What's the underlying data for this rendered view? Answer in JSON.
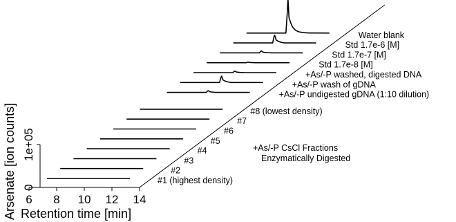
{
  "chart_data": {
    "type": "line",
    "xlabel": "Retention time [min]",
    "ylabel": "Arsenate [ion counts]",
    "x_ticks": [
      "6",
      "8",
      "10",
      "12",
      "14"
    ],
    "y_ticks": [
      "0",
      "1e+05"
    ],
    "xlim": [
      6,
      14
    ],
    "ylim": [
      0,
      100000
    ],
    "group_label_lines": [
      "+As/-P CsCl Fractions",
      "Enzymatically Digested"
    ],
    "series": [
      {
        "name": "#1 (highest density)",
        "peak": null
      },
      {
        "name": "#2",
        "peak": null
      },
      {
        "name": "#3",
        "peak": null
      },
      {
        "name": "#4",
        "peak": null
      },
      {
        "name": "#5",
        "peak": null
      },
      {
        "name": "#6",
        "peak": null
      },
      {
        "name": "#7",
        "peak": null
      },
      {
        "name": "#8 (lowest density)",
        "peak": null
      },
      {
        "name": "+As/-P undigested gDNA (1:10 dilution)",
        "peak": {
          "rt": 10.0,
          "height": 4000
        }
      },
      {
        "name": "+As/-P wash of gDNA",
        "peak": {
          "rt": 10.0,
          "height": 15000
        }
      },
      {
        "name": "+As/-P washed, digested DNA",
        "peak": {
          "rt": 10.0,
          "height": 3500
        }
      },
      {
        "name": "Std 1.7e-8 [M]",
        "peak": {
          "rt": 10.0,
          "height": 1500
        }
      },
      {
        "name": "Std 1.7e-7 [M]",
        "peak": {
          "rt": 10.0,
          "height": 4500
        }
      },
      {
        "name": "Std 1.7e-6 [M]",
        "peak": {
          "rt": 10.0,
          "height": 18000
        }
      },
      {
        "name": "Water blank",
        "peak": {
          "rt": 10.0,
          "height": 80000
        }
      }
    ]
  }
}
